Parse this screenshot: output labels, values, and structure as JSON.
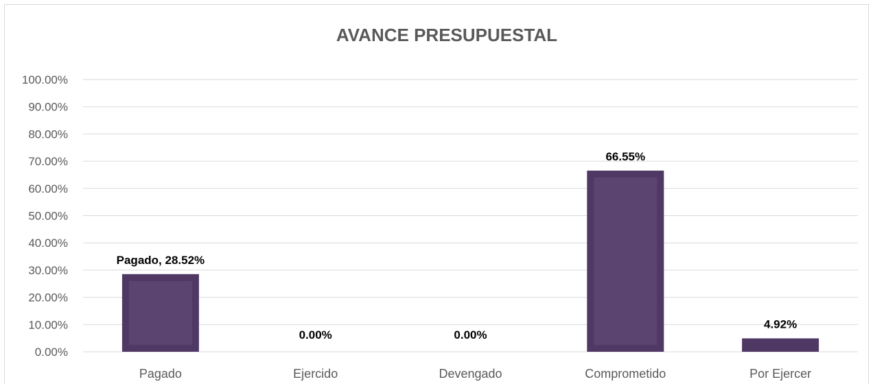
{
  "chart_data": {
    "type": "bar",
    "title": "AVANCE PRESUPUESTAL",
    "categories": [
      "Pagado",
      "Ejercido",
      "Devengado",
      "Comprometido",
      "Por Ejercer"
    ],
    "values": [
      28.52,
      0.0,
      0.0,
      66.55,
      4.92
    ],
    "data_labels": [
      "Pagado, 28.52%",
      "0.00%",
      "0.00%",
      "66.55%",
      "4.92%"
    ],
    "y_ticks": [
      "0.00%",
      "10.00%",
      "20.00%",
      "30.00%",
      "40.00%",
      "50.00%",
      "60.00%",
      "70.00%",
      "80.00%",
      "90.00%",
      "100.00%"
    ],
    "ylim": [
      0,
      100
    ],
    "xlabel": "",
    "ylabel": "",
    "grid": true,
    "legend": "none",
    "colors": {
      "bar_fill": "#4f3864",
      "bar_inner": "#5b4470",
      "grid": "#d9d9d9",
      "axis_text": "#595959",
      "title_text": "#595959",
      "label_text": "#000000"
    }
  }
}
